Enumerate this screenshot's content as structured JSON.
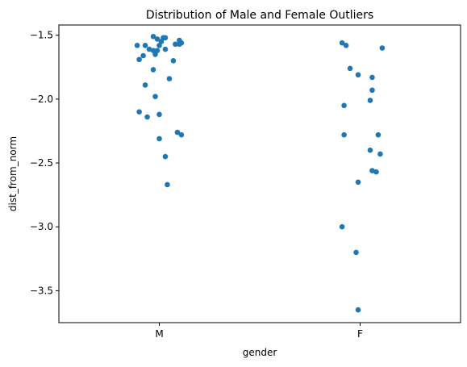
{
  "chart_data": {
    "type": "scatter",
    "subtype": "strip",
    "title": "Distribution of Male and Female Outliers",
    "xlabel": "gender",
    "ylabel": "dist_from_norm",
    "categories": [
      "M",
      "F"
    ],
    "ylim": [
      -3.75,
      -1.42
    ],
    "yticks": [
      -1.5,
      -2.0,
      -2.5,
      -3.0,
      -3.5
    ],
    "ytick_labels": [
      "−1.5",
      "−2.0",
      "−2.5",
      "−3.0",
      "−3.5"
    ],
    "grid": false,
    "marker_color": "#1f77b4",
    "points": [
      {
        "category": "M",
        "jitter": -0.11,
        "y": -1.58
      },
      {
        "category": "M",
        "jitter": -0.07,
        "y": -1.58
      },
      {
        "category": "M",
        "jitter": -0.05,
        "y": -1.61
      },
      {
        "category": "M",
        "jitter": -0.03,
        "y": -1.62
      },
      {
        "category": "M",
        "jitter": -0.01,
        "y": -1.62
      },
      {
        "category": "M",
        "jitter": -0.02,
        "y": -1.65
      },
      {
        "category": "M",
        "jitter": -0.08,
        "y": -1.66
      },
      {
        "category": "M",
        "jitter": -0.1,
        "y": -1.69
      },
      {
        "category": "M",
        "jitter": -0.03,
        "y": -1.51
      },
      {
        "category": "M",
        "jitter": -0.01,
        "y": -1.53
      },
      {
        "category": "M",
        "jitter": 0.01,
        "y": -1.55
      },
      {
        "category": "M",
        "jitter": 0.02,
        "y": -1.52
      },
      {
        "category": "M",
        "jitter": 0.03,
        "y": -1.52
      },
      {
        "category": "M",
        "jitter": 0.0,
        "y": -1.58
      },
      {
        "category": "M",
        "jitter": 0.03,
        "y": -1.61
      },
      {
        "category": "M",
        "jitter": 0.08,
        "y": -1.57
      },
      {
        "category": "M",
        "jitter": 0.1,
        "y": -1.57
      },
      {
        "category": "M",
        "jitter": 0.11,
        "y": -1.56
      },
      {
        "category": "M",
        "jitter": 0.1,
        "y": -1.54
      },
      {
        "category": "M",
        "jitter": 0.07,
        "y": -1.7
      },
      {
        "category": "M",
        "jitter": -0.03,
        "y": -1.77
      },
      {
        "category": "M",
        "jitter": 0.05,
        "y": -1.84
      },
      {
        "category": "M",
        "jitter": -0.07,
        "y": -1.89
      },
      {
        "category": "M",
        "jitter": -0.02,
        "y": -1.98
      },
      {
        "category": "M",
        "jitter": -0.1,
        "y": -2.1
      },
      {
        "category": "M",
        "jitter": 0.0,
        "y": -2.12
      },
      {
        "category": "M",
        "jitter": -0.06,
        "y": -2.14
      },
      {
        "category": "M",
        "jitter": 0.09,
        "y": -2.26
      },
      {
        "category": "M",
        "jitter": 0.11,
        "y": -2.28
      },
      {
        "category": "M",
        "jitter": 0.0,
        "y": -2.31
      },
      {
        "category": "M",
        "jitter": 0.03,
        "y": -2.45
      },
      {
        "category": "M",
        "jitter": 0.04,
        "y": -2.67
      },
      {
        "category": "F",
        "jitter": -0.09,
        "y": -1.56
      },
      {
        "category": "F",
        "jitter": -0.07,
        "y": -1.58
      },
      {
        "category": "F",
        "jitter": 0.11,
        "y": -1.6
      },
      {
        "category": "F",
        "jitter": -0.05,
        "y": -1.76
      },
      {
        "category": "F",
        "jitter": -0.01,
        "y": -1.81
      },
      {
        "category": "F",
        "jitter": 0.06,
        "y": -1.83
      },
      {
        "category": "F",
        "jitter": 0.06,
        "y": -1.93
      },
      {
        "category": "F",
        "jitter": 0.05,
        "y": -2.01
      },
      {
        "category": "F",
        "jitter": -0.08,
        "y": -2.05
      },
      {
        "category": "F",
        "jitter": 0.09,
        "y": -2.28
      },
      {
        "category": "F",
        "jitter": -0.08,
        "y": -2.28
      },
      {
        "category": "F",
        "jitter": 0.05,
        "y": -2.4
      },
      {
        "category": "F",
        "jitter": 0.1,
        "y": -2.43
      },
      {
        "category": "F",
        "jitter": 0.06,
        "y": -2.56
      },
      {
        "category": "F",
        "jitter": 0.08,
        "y": -2.57
      },
      {
        "category": "F",
        "jitter": -0.01,
        "y": -2.65
      },
      {
        "category": "F",
        "jitter": -0.09,
        "y": -3.0
      },
      {
        "category": "F",
        "jitter": -0.02,
        "y": -3.2
      },
      {
        "category": "F",
        "jitter": -0.01,
        "y": -3.65
      }
    ]
  }
}
